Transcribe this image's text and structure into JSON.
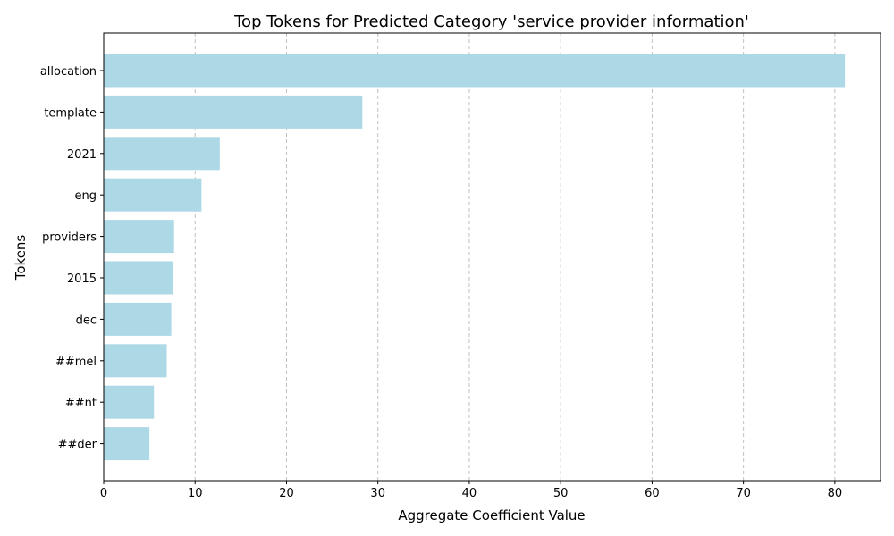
{
  "chart_data": {
    "type": "bar",
    "orientation": "horizontal",
    "title": "Top Tokens for Predicted Category 'service provider information'",
    "xlabel": "Aggregate Coefficient Value",
    "ylabel": "Tokens",
    "xlim": [
      0,
      85
    ],
    "xticks": [
      0,
      10,
      20,
      30,
      40,
      50,
      60,
      70,
      80
    ],
    "xtick_labels": [
      "0",
      "10",
      "20",
      "30",
      "40",
      "50",
      "60",
      "70",
      "80"
    ],
    "grid": "vertical dashed",
    "categories": [
      "allocation",
      "template",
      "2021",
      "eng",
      "providers",
      "2015",
      "dec",
      "##mel",
      "##nt",
      "##der"
    ],
    "values": [
      81.1,
      28.3,
      12.7,
      10.7,
      7.7,
      7.6,
      7.4,
      6.9,
      5.5,
      5.0
    ],
    "bar_color": "#add8e6",
    "grid_color": "#c0c0c0"
  }
}
